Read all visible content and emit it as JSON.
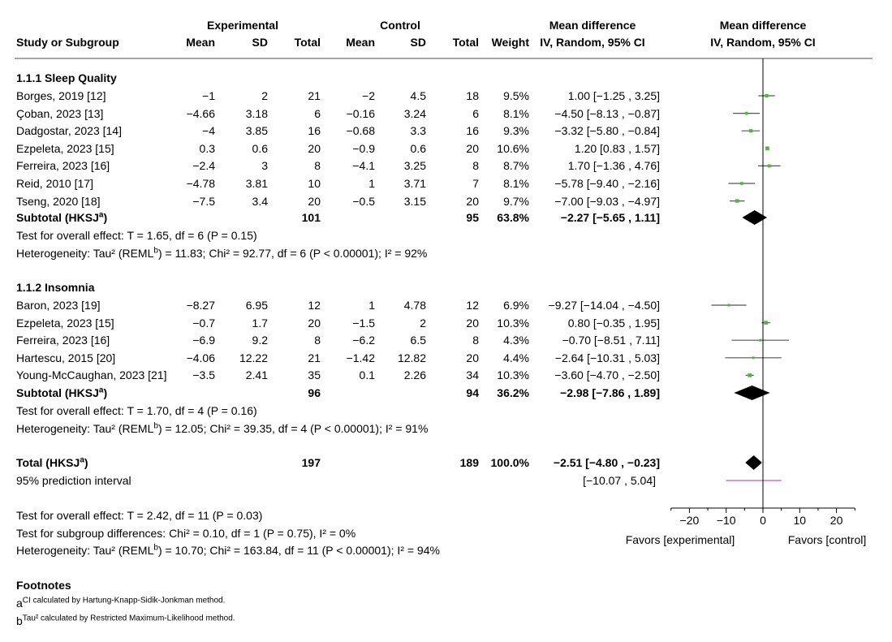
{
  "header": {
    "experimental": "Experimental",
    "control": "Control",
    "md_top": "Mean difference",
    "md_bottom": "IV, Random, 95% CI",
    "plot_top": "Mean difference",
    "plot_bottom": "IV, Random, 95% CI",
    "study": "Study or Subgroup",
    "e_mean": "Mean",
    "e_sd": "SD",
    "e_total": "Total",
    "c_mean": "Mean",
    "c_sd": "SD",
    "c_total": "Total",
    "weight": "Weight"
  },
  "groups": [
    {
      "title": "1.1.1 Sleep Quality",
      "studies": [
        {
          "name": "Borges, 2019 [12]",
          "e_mean": "−1",
          "e_sd": "2",
          "e_total": "21",
          "c_mean": "−2",
          "c_sd": "4.5",
          "c_total": "18",
          "weight": "9.5%",
          "ci": "1.00 [−1.25 , 3.25]"
        },
        {
          "name": "Çoban, 2023 [13]",
          "e_mean": "−4.66",
          "e_sd": "3.18",
          "e_total": "6",
          "c_mean": "−0.16",
          "c_sd": "3.24",
          "c_total": "6",
          "weight": "8.1%",
          "ci": "−4.50 [−8.13 , −0.87]"
        },
        {
          "name": "Dadgostar, 2023 [14]",
          "e_mean": "−4",
          "e_sd": "3.85",
          "e_total": "16",
          "c_mean": "−0.68",
          "c_sd": "3.3",
          "c_total": "16",
          "weight": "9.3%",
          "ci": "−3.32 [−5.80 , −0.84]"
        },
        {
          "name": "Ezpeleta, 2023 [15]",
          "e_mean": "0.3",
          "e_sd": "0.6",
          "e_total": "20",
          "c_mean": "−0.9",
          "c_sd": "0.6",
          "c_total": "20",
          "weight": "10.6%",
          "ci": "1.20 [0.83 , 1.57]"
        },
        {
          "name": "Ferreira, 2023 [16]",
          "e_mean": "−2.4",
          "e_sd": "3",
          "e_total": "8",
          "c_mean": "−4.1",
          "c_sd": "3.25",
          "c_total": "8",
          "weight": "8.7%",
          "ci": "1.70 [−1.36 , 4.76]"
        },
        {
          "name": "Reid, 2010 [17]",
          "e_mean": "−4.78",
          "e_sd": "3.81",
          "e_total": "10",
          "c_mean": "1",
          "c_sd": "3.71",
          "c_total": "7",
          "weight": "8.1%",
          "ci": "−5.78 [−9.40 , −2.16]"
        },
        {
          "name": "Tseng, 2020 [18]",
          "e_mean": "−7.5",
          "e_sd": "3.4",
          "e_total": "20",
          "c_mean": "−0.5",
          "c_sd": "3.15",
          "c_total": "20",
          "weight": "9.7%",
          "ci": "−7.00 [−9.03 , −4.97]"
        }
      ],
      "subtotal": {
        "label": "Subtotal (HKSJ",
        "sup": "a",
        "close": ")",
        "e_total": "101",
        "c_total": "95",
        "weight": "63.8%",
        "ci": "−2.27 [−5.65 , 1.11]"
      },
      "test_effect": "Test for overall effect: T = 1.65, df = 6 (P = 0.15)",
      "het_a": "Heterogeneity: Tau² (REML",
      "het_sup": "b",
      "het_b": ") = 11.83; Chi² = 92.77, df = 6 (P < 0.00001); I² = 92%"
    },
    {
      "title": "1.1.2 Insomnia",
      "studies": [
        {
          "name": "Baron, 2023 [19]",
          "e_mean": "−8.27",
          "e_sd": "6.95",
          "e_total": "12",
          "c_mean": "1",
          "c_sd": "4.78",
          "c_total": "12",
          "weight": "6.9%",
          "ci": "−9.27 [−14.04 , −4.50]"
        },
        {
          "name": "Ezpeleta, 2023 [15]",
          "e_mean": "−0.7",
          "e_sd": "1.7",
          "e_total": "20",
          "c_mean": "−1.5",
          "c_sd": "2",
          "c_total": "20",
          "weight": "10.3%",
          "ci": "0.80 [−0.35 , 1.95]"
        },
        {
          "name": "Ferreira, 2023 [16]",
          "e_mean": "−6.9",
          "e_sd": "9.2",
          "e_total": "8",
          "c_mean": "−6.2",
          "c_sd": "6.5",
          "c_total": "8",
          "weight": "4.3%",
          "ci": "−0.70 [−8.51 , 7.11]"
        },
        {
          "name": "Hartescu, 2015 [20]",
          "e_mean": "−4.06",
          "e_sd": "12.22",
          "e_total": "21",
          "c_mean": "−1.42",
          "c_sd": "12.82",
          "c_total": "20",
          "weight": "4.4%",
          "ci": "−2.64 [−10.31 , 5.03]"
        },
        {
          "name": "Young-McCaughan, 2023 [21]",
          "e_mean": "−3.5",
          "e_sd": "2.41",
          "e_total": "35",
          "c_mean": "0.1",
          "c_sd": "2.26",
          "c_total": "34",
          "weight": "10.3%",
          "ci": "−3.60 [−4.70 , −2.50]"
        }
      ],
      "subtotal": {
        "label": "Subtotal (HKSJ",
        "sup": "a",
        "close": ")",
        "e_total": "96",
        "c_total": "94",
        "weight": "36.2%",
        "ci": "−2.98 [−7.86 , 1.89]"
      },
      "test_effect": "Test for overall effect: T = 1.70, df = 4 (P = 0.16)",
      "het_a": "Heterogeneity: Tau² (REML",
      "het_sup": "b",
      "het_b": ") = 12.05; Chi² = 39.35, df = 4 (P < 0.00001); I² = 91%"
    }
  ],
  "total": {
    "label": "Total (HKSJ",
    "sup": "a",
    "close": ")",
    "e_total": "197",
    "c_total": "189",
    "weight": "100.0%",
    "ci": "−2.51 [−4.80 , −0.23]"
  },
  "prediction": {
    "label": "95% prediction interval",
    "ci": "[−10.07 , 5.04]"
  },
  "overall": {
    "test_effect": "Test for overall effect: T = 2.42, df = 11 (P = 0.03)",
    "subgroup": "Test for subgroup differences: Chi² = 0.10, df = 1 (P = 0.75), I² = 0%",
    "het_a": "Heterogeneity: Tau² (REML",
    "het_sup": "b",
    "het_b": ") = 10.70; Chi² = 163.84, df = 11 (P < 0.00001); I² = 94%"
  },
  "footnotes": {
    "title": "Footnotes",
    "a_sup": "a",
    "a_text": "CI calculated by Hartung-Knapp-Sidik-Jonkman method.",
    "b_sup": "b",
    "b_text": "Tau² calculated by Restricted Maximum-Likelihood method."
  },
  "axis": {
    "favors_left": "Favors [experimental]",
    "favors_right": "Favors [control]"
  },
  "colors": {
    "point": "#4dbb3a",
    "diamond": "#000000",
    "ci_line": "#555555",
    "prediction": "#cc77cc",
    "rule": "#888888"
  },
  "chart_data": {
    "type": "forest",
    "title": "Mean difference IV, Random, 95% CI",
    "xlim": [
      -25,
      25
    ],
    "ticks": [
      -20,
      -10,
      0,
      10,
      20
    ],
    "tick_labels": [
      "−20",
      "−10",
      "0",
      "10",
      "20"
    ],
    "studies": [
      {
        "name": "Borges, 2019 [12]",
        "group": "1.1.1 Sleep Quality",
        "md": 1.0,
        "lo": -1.25,
        "hi": 3.25,
        "weight": 9.5
      },
      {
        "name": "Çoban, 2023 [13]",
        "group": "1.1.1 Sleep Quality",
        "md": -4.5,
        "lo": -8.13,
        "hi": -0.87,
        "weight": 8.1
      },
      {
        "name": "Dadgostar, 2023 [14]",
        "group": "1.1.1 Sleep Quality",
        "md": -3.32,
        "lo": -5.8,
        "hi": -0.84,
        "weight": 9.3
      },
      {
        "name": "Ezpeleta, 2023 [15]",
        "group": "1.1.1 Sleep Quality",
        "md": 1.2,
        "lo": 0.83,
        "hi": 1.57,
        "weight": 10.6
      },
      {
        "name": "Ferreira, 2023 [16]",
        "group": "1.1.1 Sleep Quality",
        "md": 1.7,
        "lo": -1.36,
        "hi": 4.76,
        "weight": 8.7
      },
      {
        "name": "Reid, 2010 [17]",
        "group": "1.1.1 Sleep Quality",
        "md": -5.78,
        "lo": -9.4,
        "hi": -2.16,
        "weight": 8.1
      },
      {
        "name": "Tseng, 2020 [18]",
        "group": "1.1.1 Sleep Quality",
        "md": -7.0,
        "lo": -9.03,
        "hi": -4.97,
        "weight": 9.7
      },
      {
        "name": "Baron, 2023 [19]",
        "group": "1.1.2 Insomnia",
        "md": -9.27,
        "lo": -14.04,
        "hi": -4.5,
        "weight": 6.9
      },
      {
        "name": "Ezpeleta, 2023 [15]",
        "group": "1.1.2 Insomnia",
        "md": 0.8,
        "lo": -0.35,
        "hi": 1.95,
        "weight": 10.3
      },
      {
        "name": "Ferreira, 2023 [16]",
        "group": "1.1.2 Insomnia",
        "md": -0.7,
        "lo": -8.51,
        "hi": 7.11,
        "weight": 4.3
      },
      {
        "name": "Hartescu, 2015 [20]",
        "group": "1.1.2 Insomnia",
        "md": -2.64,
        "lo": -10.31,
        "hi": 5.03,
        "weight": 4.4
      },
      {
        "name": "Young-McCaughan, 2023 [21]",
        "group": "1.1.2 Insomnia",
        "md": -3.6,
        "lo": -4.7,
        "hi": -2.5,
        "weight": 10.3
      }
    ],
    "subtotals": [
      {
        "name": "Subtotal 1.1.1 Sleep Quality",
        "md": -2.27,
        "lo": -5.65,
        "hi": 1.11
      },
      {
        "name": "Subtotal 1.1.2 Insomnia",
        "md": -2.98,
        "lo": -7.86,
        "hi": 1.89
      }
    ],
    "total": {
      "name": "Total",
      "md": -2.51,
      "lo": -4.8,
      "hi": -0.23
    },
    "prediction_interval": {
      "lo": -10.07,
      "hi": 5.04
    }
  }
}
